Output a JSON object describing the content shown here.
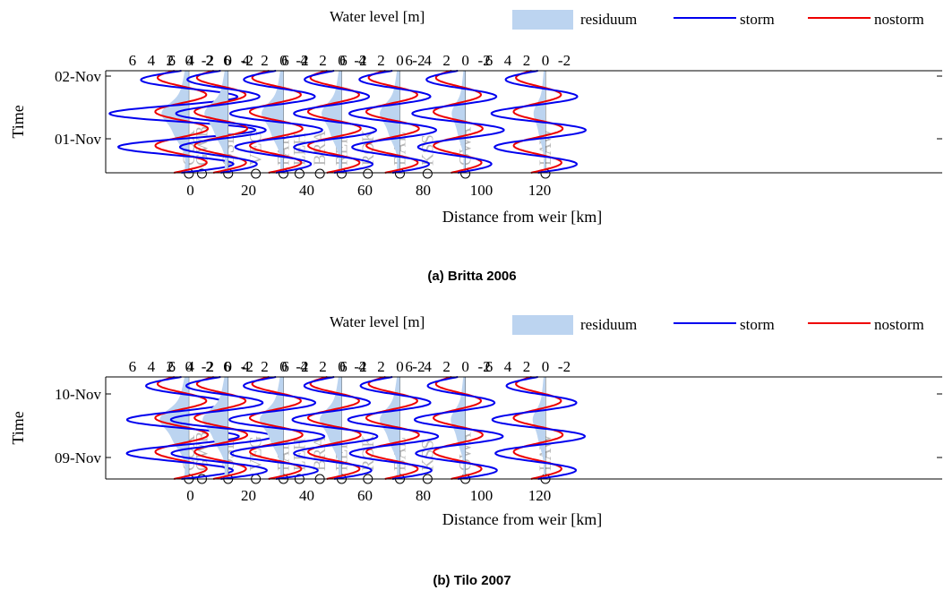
{
  "chart_data": [
    {
      "type": "line",
      "caption": "(a) Britta 2006",
      "legend": {
        "title": "Water level [m]",
        "items": [
          "residuum",
          "storm",
          "nostorm"
        ],
        "placement": "top"
      },
      "xlabel": "Distance from weir [km]",
      "ylabel": "Time",
      "x_ticks": [
        "0",
        "20",
        "40",
        "60",
        "80",
        "100",
        "120"
      ],
      "top_tick_labels": [
        "6",
        "4",
        "2",
        "0",
        "-2"
      ],
      "y_ticks": [
        "02-Nov",
        "01-Nov"
      ],
      "xlim": [
        -15,
        128
      ],
      "time_range_days": [
        -0.5,
        1.0
      ],
      "stations": [
        {
          "label": "CUX",
          "x_km": -0.5
        },
        {
          "label": "GWB",
          "x_km": 4
        },
        {
          "label": "OSL",
          "x_km": 13
        },
        {
          "label": "VEG",
          "x_km": 22.5
        },
        {
          "label": "FAR",
          "x_km": 32
        },
        {
          "label": "LEH",
          "x_km": 37.5
        },
        {
          "label": "BRA",
          "x_km": 44.5
        },
        {
          "label": "REF",
          "x_km": 52
        },
        {
          "label": "ROK",
          "x_km": 61
        },
        {
          "label": "BAL",
          "x_km": 72
        },
        {
          "label": "KSS",
          "x_km": 81.5
        },
        {
          "label": "OWA",
          "x_km": 94.5
        },
        {
          "label": "LAW",
          "x_km": 122
        }
      ],
      "profiles": [
        {
          "station": "CUX",
          "storm_amp": [
            3.6,
            8.9,
            5.2
          ],
          "nostorm_amp": [
            2.6,
            3.0,
            2.8
          ],
          "res_amp": 3.0
        },
        {
          "station": "OSL",
          "storm_amp": [
            3.4,
            5.3,
            3.8
          ],
          "nostorm_amp": [
            2.6,
            3.0,
            2.8
          ],
          "res_amp": 2.6
        },
        {
          "station": "FAR",
          "storm_amp": [
            3.2,
            5.5,
            3.6
          ],
          "nostorm_amp": [
            2.6,
            3.0,
            2.8
          ],
          "res_amp": 2.4
        },
        {
          "station": "REF",
          "storm_amp": [
            3.0,
            4.8,
            4.2
          ],
          "nostorm_amp": [
            2.6,
            3.0,
            2.8
          ],
          "res_amp": 2.2
        },
        {
          "station": "BAL",
          "storm_amp": [
            3.4,
            5.1,
            3.9
          ],
          "nostorm_amp": [
            2.6,
            3.0,
            2.8
          ],
          "res_amp": 2.2
        },
        {
          "station": "OWA",
          "storm_amp": [
            3.1,
            5.5,
            3.4
          ],
          "nostorm_amp": [
            2.4,
            2.8,
            2.6
          ],
          "res_amp": 1.5
        },
        {
          "station": "LAW",
          "storm_amp": [
            3.2,
            5.6,
            4.1
          ],
          "nostorm_amp": [
            2.4,
            2.8,
            2.6
          ],
          "res_amp": 1.3
        }
      ]
    },
    {
      "type": "line",
      "caption": "(b) Tilo 2007",
      "legend": {
        "title": "Water level [m]",
        "items": [
          "residuum",
          "storm",
          "nostorm"
        ],
        "placement": "top"
      },
      "xlabel": "Distance from weir [km]",
      "ylabel": "Time",
      "x_ticks": [
        "0",
        "20",
        "40",
        "60",
        "80",
        "100",
        "120"
      ],
      "top_tick_labels": [
        "6",
        "4",
        "2",
        "0",
        "-2"
      ],
      "y_ticks": [
        "10-Nov",
        "09-Nov"
      ],
      "xlim": [
        -15,
        128
      ],
      "time_range_days": [
        -0.25,
        1.25
      ],
      "stations": [
        {
          "label": "CUX",
          "x_km": -0.5
        },
        {
          "label": "GWB",
          "x_km": 4
        },
        {
          "label": "OSL",
          "x_km": 13
        },
        {
          "label": "VEG",
          "x_km": 22.5
        },
        {
          "label": "FAR",
          "x_km": 32
        },
        {
          "label": "LEH",
          "x_km": 37.5
        },
        {
          "label": "BRA",
          "x_km": 44.5
        },
        {
          "label": "REF",
          "x_km": 52
        },
        {
          "label": "ROK",
          "x_km": 61
        },
        {
          "label": "BAL",
          "x_km": 72
        },
        {
          "label": "KSS",
          "x_km": 81.5
        },
        {
          "label": "OWA",
          "x_km": 94.5
        },
        {
          "label": "LAW",
          "x_km": 122
        }
      ],
      "profiles": [
        {
          "station": "CUX",
          "storm_amp": [
            3.4,
            6.6,
            5.6
          ],
          "nostorm_amp": [
            2.6,
            3.0,
            2.8
          ],
          "res_amp": 3.2
        },
        {
          "station": "OSL",
          "storm_amp": [
            3.4,
            6.0,
            5.0
          ],
          "nostorm_amp": [
            2.6,
            3.0,
            2.8
          ],
          "res_amp": 2.8
        },
        {
          "station": "FAR",
          "storm_amp": [
            3.2,
            5.6,
            4.5
          ],
          "nostorm_amp": [
            2.6,
            3.0,
            2.8
          ],
          "res_amp": 2.6
        },
        {
          "station": "REF",
          "storm_amp": [
            3.0,
            5.0,
            4.0
          ],
          "nostorm_amp": [
            2.6,
            3.0,
            2.8
          ],
          "res_amp": 2.4
        },
        {
          "station": "BAL",
          "storm_amp": [
            3.2,
            5.3,
            4.2
          ],
          "nostorm_amp": [
            2.6,
            3.0,
            2.8
          ],
          "res_amp": 2.2
        },
        {
          "station": "OWA",
          "storm_amp": [
            3.0,
            5.2,
            4.2
          ],
          "nostorm_amp": [
            2.4,
            2.8,
            2.6
          ],
          "res_amp": 1.6
        },
        {
          "station": "LAW",
          "storm_amp": [
            3.1,
            5.5,
            4.0
          ],
          "nostorm_amp": [
            2.4,
            2.8,
            2.6
          ],
          "res_amp": 1.4
        }
      ]
    }
  ],
  "colors": {
    "residuum": "#bcd4f0",
    "storm": "#0000ee",
    "nostorm": "#ee0000",
    "station_text": "#b8b8b8",
    "axis": "#000000"
  }
}
